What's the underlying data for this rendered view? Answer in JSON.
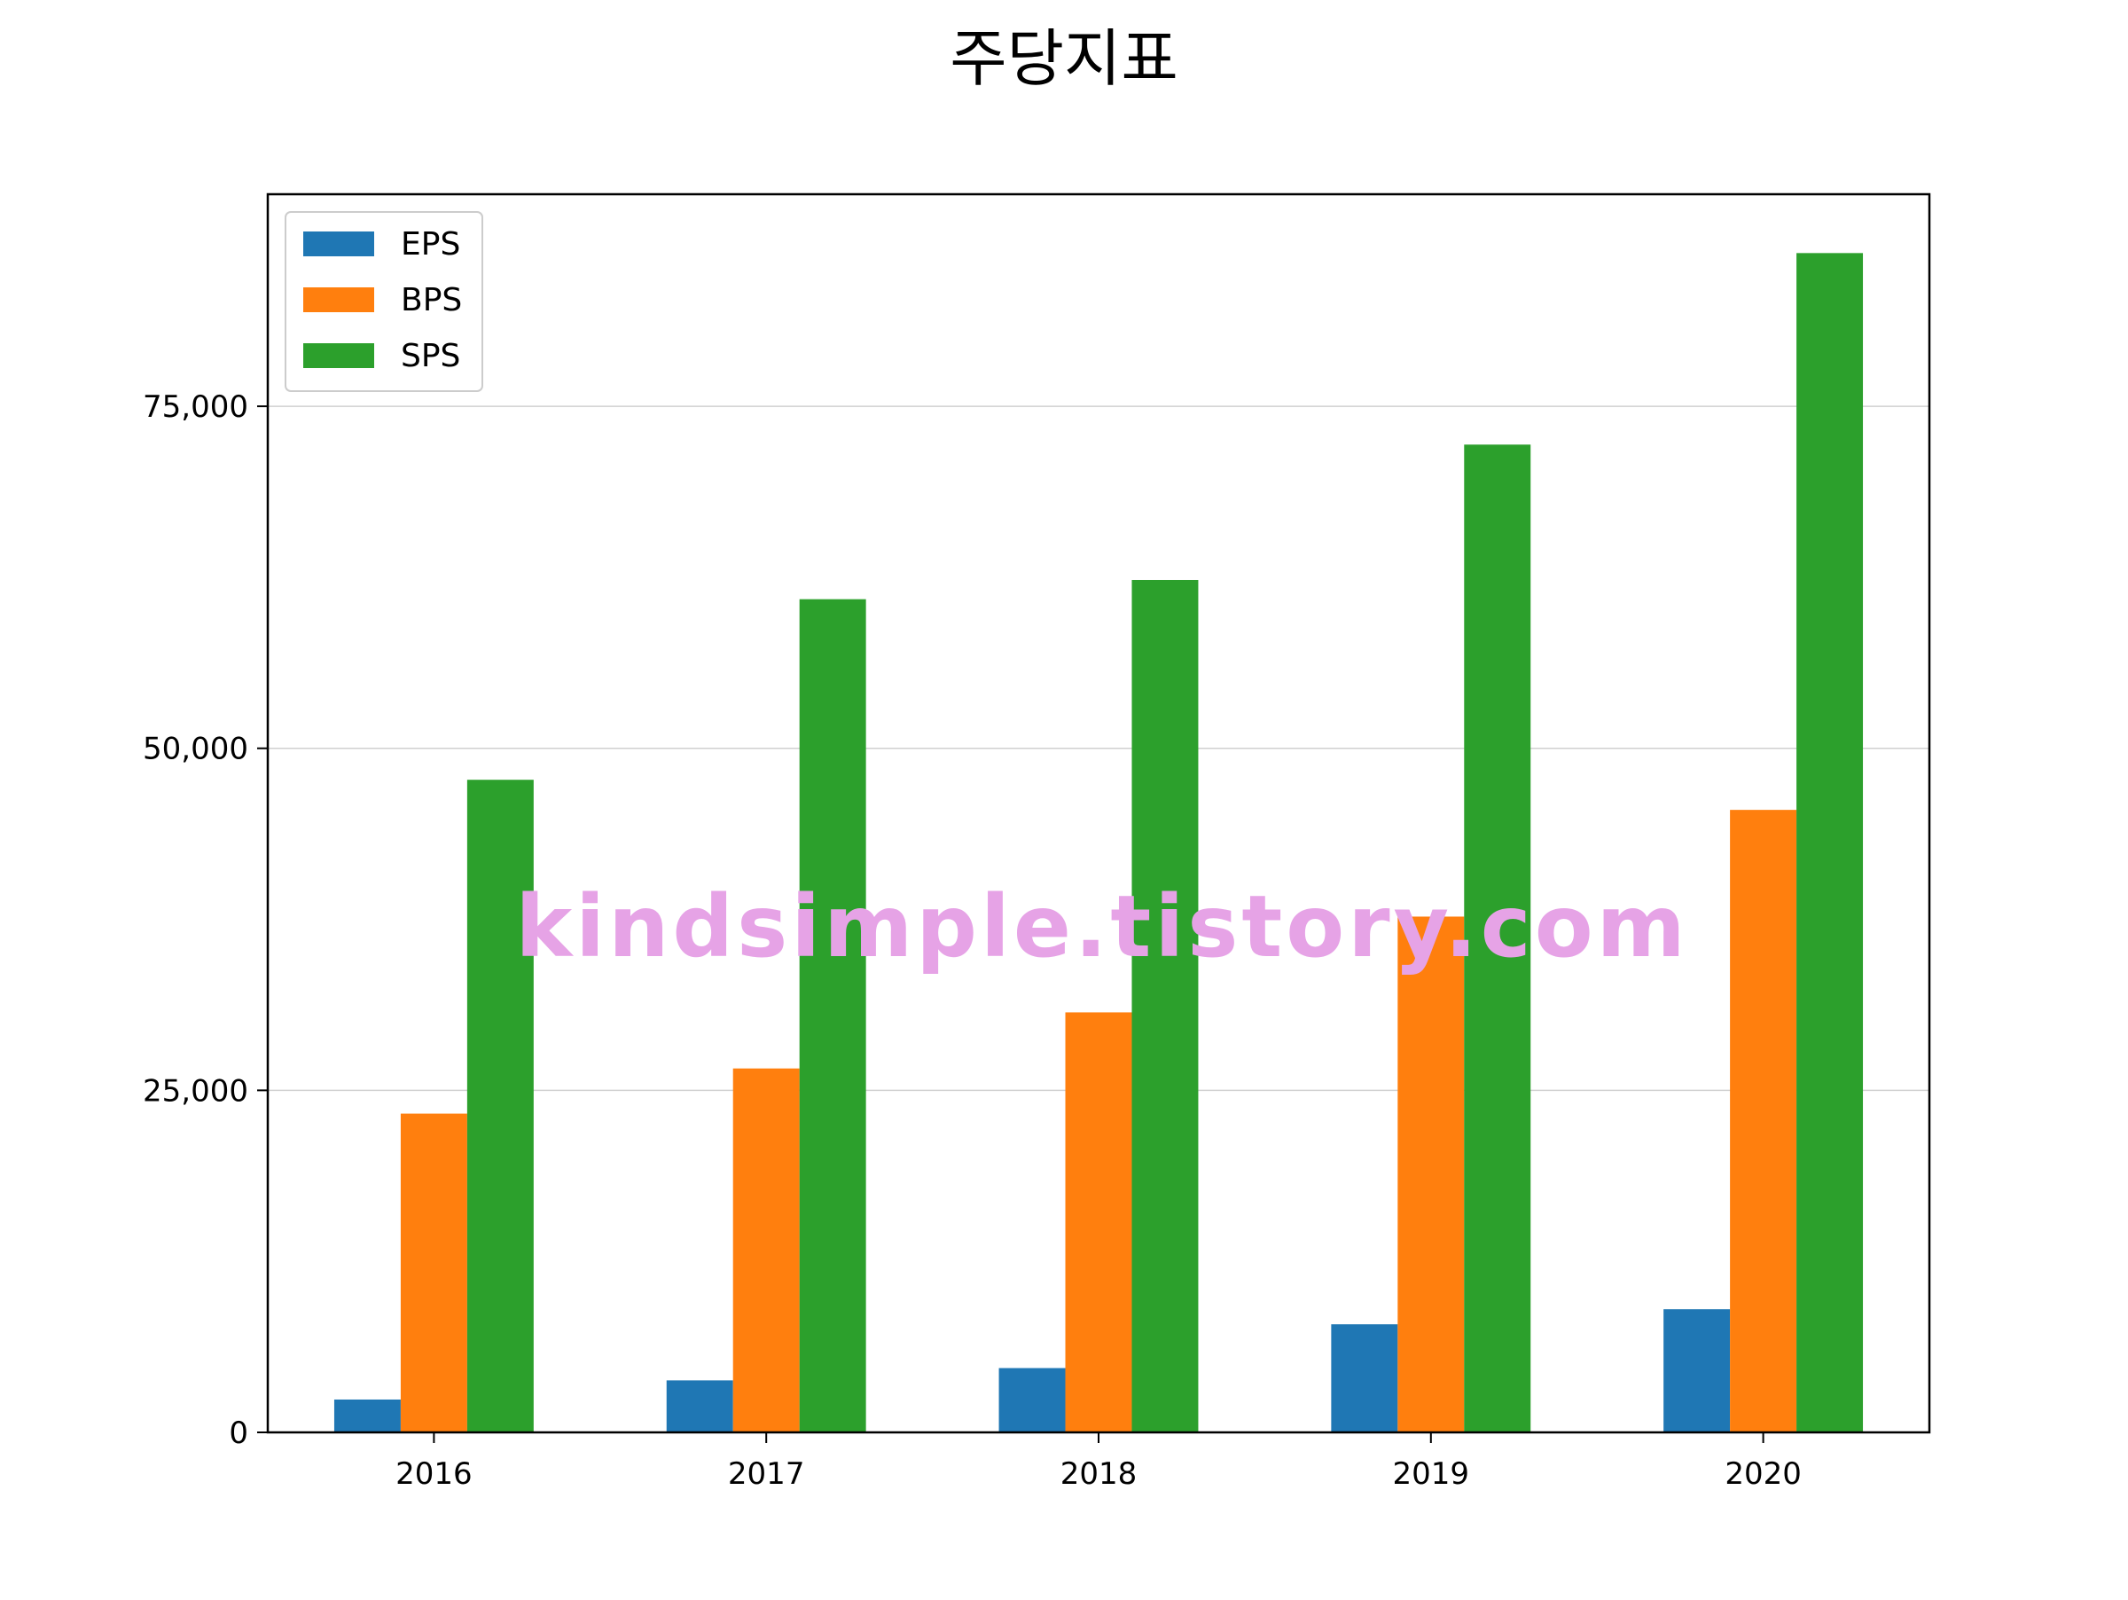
{
  "chart_data": {
    "type": "bar",
    "title": "주당지표",
    "xlabel": "",
    "ylabel": "",
    "categories": [
      "2016",
      "2017",
      "2018",
      "2019",
      "2020"
    ],
    "series": [
      {
        "name": "EPS",
        "color": "#1f77b4",
        "values": [
          2400,
          3800,
          4700,
          7900,
          9000
        ]
      },
      {
        "name": "BPS",
        "color": "#ff7f0e",
        "values": [
          23300,
          26600,
          30700,
          37700,
          45500
        ]
      },
      {
        "name": "SPS",
        "color": "#2ca02c",
        "values": [
          47700,
          60900,
          62300,
          72200,
          86200
        ]
      }
    ],
    "ylim": [
      0,
      90500
    ],
    "yticks": [
      0,
      25000,
      50000,
      75000
    ],
    "ytick_labels": [
      "0",
      "25,000",
      "50,000",
      "75,000"
    ],
    "grid": "horizontal",
    "legend_position": "top-left",
    "watermark": "kindsimple.tistory.com",
    "watermark_color": "#e6a3e6"
  }
}
